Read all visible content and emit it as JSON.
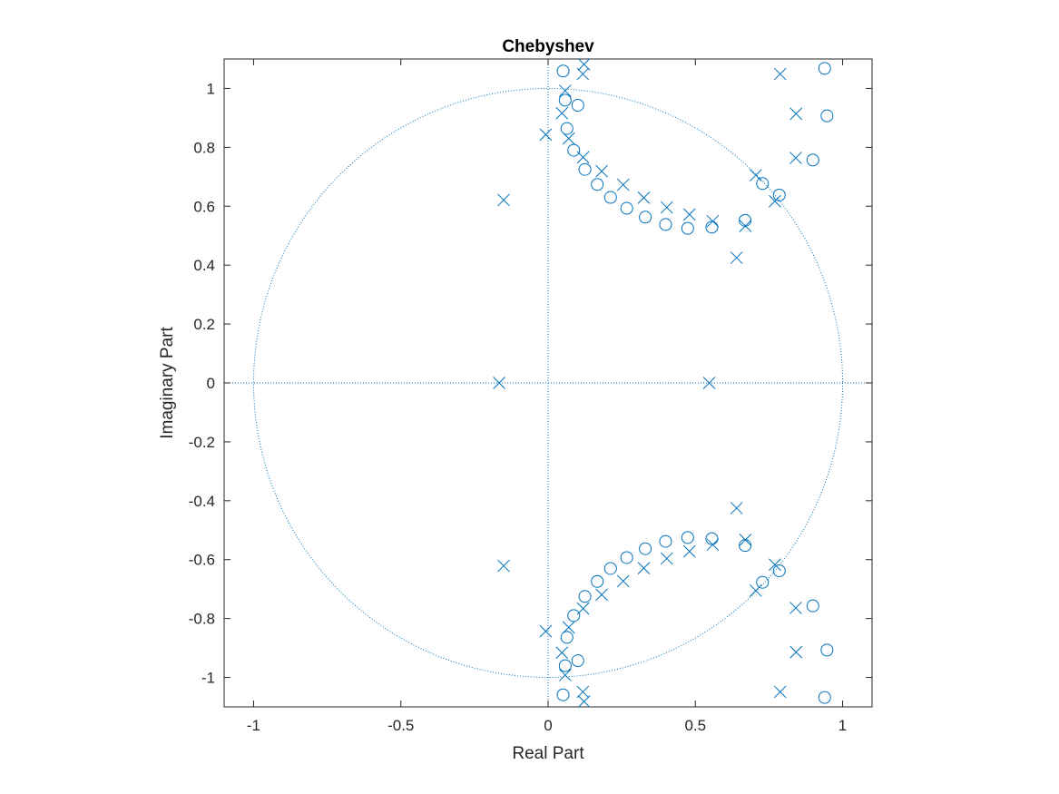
{
  "chart_data": {
    "type": "scatter",
    "title": "Chebyshev",
    "xlabel": "Real Part",
    "ylabel": "Imaginary Part",
    "xlim": [
      -1.1,
      1.1
    ],
    "ylim": [
      -1.1,
      1.1
    ],
    "xticks": [
      -1,
      -0.5,
      0,
      0.5,
      1
    ],
    "xtick_labels": [
      "-1",
      "-0.5",
      "0",
      "0.5",
      "1"
    ],
    "yticks": [
      -1,
      -0.8,
      -0.6,
      -0.4,
      -0.2,
      0,
      0.2,
      0.4,
      0.6,
      0.8,
      1
    ],
    "ytick_labels": [
      "-1",
      "-0.8",
      "-0.6",
      "-0.4",
      "-0.2",
      "0",
      "0.2",
      "0.4",
      "0.6",
      "0.8",
      "1"
    ],
    "grid": false,
    "unit_circle": true,
    "color": "#0072BD",
    "series": [
      {
        "marker": "circle",
        "points": [
          [
            0.051,
            1.059
          ],
          [
            0.058,
            0.96
          ],
          [
            0.101,
            0.943
          ],
          [
            0.064,
            0.864
          ],
          [
            0.087,
            0.79
          ],
          [
            0.125,
            0.725
          ],
          [
            0.167,
            0.674
          ],
          [
            0.212,
            0.63
          ],
          [
            0.267,
            0.593
          ],
          [
            0.33,
            0.563
          ],
          [
            0.399,
            0.538
          ],
          [
            0.474,
            0.525
          ],
          [
            0.556,
            0.529
          ],
          [
            0.669,
            0.552
          ],
          [
            0.728,
            0.677
          ],
          [
            0.785,
            0.638
          ],
          [
            0.899,
            0.757
          ],
          [
            0.939,
            1.068
          ],
          [
            0.947,
            0.907
          ],
          [
            0.051,
            -1.059
          ],
          [
            0.058,
            -0.96
          ],
          [
            0.101,
            -0.943
          ],
          [
            0.064,
            -0.864
          ],
          [
            0.087,
            -0.79
          ],
          [
            0.125,
            -0.725
          ],
          [
            0.167,
            -0.674
          ],
          [
            0.212,
            -0.63
          ],
          [
            0.267,
            -0.593
          ],
          [
            0.33,
            -0.563
          ],
          [
            0.399,
            -0.538
          ],
          [
            0.474,
            -0.525
          ],
          [
            0.556,
            -0.529
          ],
          [
            0.669,
            -0.552
          ],
          [
            0.728,
            -0.677
          ],
          [
            0.785,
            -0.638
          ],
          [
            0.899,
            -0.757
          ],
          [
            0.939,
            -1.068
          ],
          [
            0.947,
            -0.907
          ]
        ]
      },
      {
        "marker": "cross",
        "points": [
          [
            -0.151,
            0.621
          ],
          [
            -0.166,
            0.0
          ],
          [
            0.547,
            0.0
          ],
          [
            -0.151,
            -0.621
          ],
          [
            -0.008,
            0.843
          ],
          [
            0.047,
            0.916
          ],
          [
            0.058,
            0.992
          ],
          [
            0.118,
            1.049
          ],
          [
            0.122,
            1.082
          ],
          [
            0.07,
            0.83
          ],
          [
            0.119,
            0.766
          ],
          [
            0.182,
            0.719
          ],
          [
            0.255,
            0.673
          ],
          [
            0.325,
            0.629
          ],
          [
            0.403,
            0.596
          ],
          [
            0.48,
            0.572
          ],
          [
            0.559,
            0.549
          ],
          [
            0.64,
            0.425
          ],
          [
            0.67,
            0.533
          ],
          [
            0.705,
            0.705
          ],
          [
            0.77,
            0.617
          ],
          [
            0.788,
            1.049
          ],
          [
            0.842,
            0.914
          ],
          [
            0.841,
            0.764
          ],
          [
            -0.008,
            -0.843
          ],
          [
            0.047,
            -0.916
          ],
          [
            0.058,
            -0.992
          ],
          [
            0.118,
            -1.049
          ],
          [
            0.122,
            -1.082
          ],
          [
            0.07,
            -0.83
          ],
          [
            0.119,
            -0.766
          ],
          [
            0.182,
            -0.719
          ],
          [
            0.255,
            -0.673
          ],
          [
            0.325,
            -0.629
          ],
          [
            0.403,
            -0.596
          ],
          [
            0.48,
            -0.572
          ],
          [
            0.559,
            -0.549
          ],
          [
            0.64,
            -0.425
          ],
          [
            0.67,
            -0.533
          ],
          [
            0.705,
            -0.705
          ],
          [
            0.77,
            -0.617
          ],
          [
            0.788,
            -1.049
          ],
          [
            0.842,
            -0.914
          ],
          [
            0.841,
            -0.764
          ]
        ]
      }
    ]
  }
}
